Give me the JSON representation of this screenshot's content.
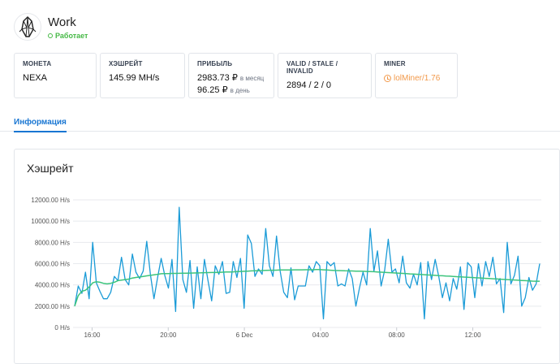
{
  "worker": {
    "name": "Work",
    "status": "Работает"
  },
  "cards": [
    {
      "label": "МОНЕТА",
      "value": "NEXA"
    },
    {
      "label": "ХЭШРЕЙТ",
      "value": "145.99 MH/s"
    },
    {
      "label": "ПРИБЫЛЬ",
      "month_value": "2983.73 ₽",
      "month_unit": "в месяц",
      "day_value": "96.25 ₽",
      "day_unit": "в день"
    },
    {
      "label": "VALID / STALE / INVALID",
      "value": "2894 / 2 / 0"
    },
    {
      "label": "MINER",
      "value": "lolMiner/1.76"
    }
  ],
  "tabs": [
    {
      "label": "Информация",
      "active": true
    }
  ],
  "colors": {
    "accent": "#1976d2",
    "status": "#46b946",
    "miner_link": "#f2994a",
    "series_raw": "#1a9bd7",
    "series_avg": "#3cc47c"
  },
  "chart_data": {
    "type": "line",
    "title": "Хэшрейт",
    "y_ticks": [
      "0 H/s",
      "2000.00 H/s",
      "4000.00 H/s",
      "6000.00 H/s",
      "8000.00 H/s",
      "10000.00 H/s",
      "12000.00 H/s"
    ],
    "ylim": [
      0,
      12000
    ],
    "x_ticks": [
      "16:00",
      "20:00",
      "6 Dec",
      "04:00",
      "08:00",
      "12:00"
    ],
    "x_range_hours": [
      -1,
      23.6
    ],
    "x_tick_hours": [
      0,
      4,
      8,
      12,
      16,
      20
    ],
    "grid": true,
    "series": [
      {
        "type": "raw",
        "values": [
          2000,
          3900,
          3200,
          5200,
          2700,
          8000,
          4200,
          3400,
          2700,
          2700,
          3300,
          4800,
          4400,
          6600,
          4500,
          4000,
          6900,
          5200,
          4600,
          5300,
          8100,
          5000,
          2700,
          4700,
          6500,
          4900,
          3700,
          6400,
          1500,
          11300,
          4500,
          3300,
          6300,
          1800,
          5700,
          2700,
          6400,
          4400,
          2500,
          5800,
          5000,
          6200,
          3200,
          3300,
          6200,
          4700,
          6500,
          1800,
          8700,
          7900,
          4800,
          5500,
          5000,
          9300,
          5800,
          4800,
          8600,
          5300,
          3300,
          2800,
          5600,
          2600,
          3900,
          3900,
          3900,
          5800,
          5200,
          6200,
          5800,
          800,
          6200,
          5800,
          6100,
          3900,
          4100,
          3900,
          5500,
          4600,
          2000,
          3700,
          5200,
          4000,
          9300,
          5300,
          7200,
          3900,
          5400,
          8300,
          5200,
          5500,
          4200,
          6700,
          4200,
          3700,
          5000,
          4000,
          6100,
          800,
          6200,
          4500,
          6400,
          4800,
          2800,
          4200,
          2500,
          4600,
          3600,
          5700,
          1700,
          6100,
          5700,
          2800,
          6000,
          3900,
          6200,
          4800,
          6600,
          4100,
          4600,
          1400,
          8000,
          4100,
          4900,
          6700,
          2000,
          2800,
          4700,
          3500,
          4100,
          6000
        ]
      },
      {
        "type": "average",
        "values": [
          2000,
          3000,
          3400,
          3500,
          3800,
          4200,
          4300,
          4250,
          4150,
          4100,
          4150,
          4250,
          4400,
          4450,
          4500,
          4550,
          4650,
          4700,
          4750,
          4800,
          4850,
          4900,
          4950,
          5000,
          5050,
          5060,
          5070,
          5080,
          5080,
          5090,
          5100,
          5100,
          5110,
          5120,
          5130,
          5140,
          5150,
          5160,
          5170,
          5170,
          5180,
          5200,
          5210,
          5220,
          5230,
          5250,
          5270,
          5280,
          5300,
          5320,
          5330,
          5340,
          5350,
          5370,
          5380,
          5380,
          5390,
          5400,
          5400,
          5400,
          5410,
          5420,
          5420,
          5420,
          5430,
          5430,
          5430,
          5440,
          5440,
          5420,
          5400,
          5380,
          5360,
          5350,
          5340,
          5330,
          5320,
          5310,
          5300,
          5290,
          5280,
          5270,
          5260,
          5240,
          5220,
          5200,
          5180,
          5160,
          5140,
          5120,
          5100,
          5080,
          5060,
          5040,
          5020,
          5000,
          4980,
          4960,
          4940,
          4920,
          4900,
          4880,
          4860,
          4840,
          4820,
          4800,
          4780,
          4760,
          4740,
          4720,
          4700,
          4680,
          4660,
          4640,
          4620,
          4600,
          4580,
          4560,
          4540,
          4520,
          4500,
          4480,
          4460,
          4440,
          4420,
          4400,
          4380,
          4360,
          4350,
          4350
        ]
      }
    ]
  }
}
